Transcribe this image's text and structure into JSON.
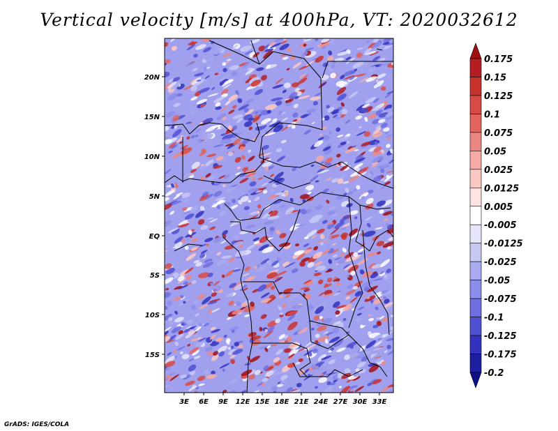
{
  "title": "Vertical velocity [m/s] at 400hPa, VT: 2020032612",
  "credit": "GrADS: IGES/COLA",
  "lat_labels": [
    "20N",
    "15N",
    "10N",
    "5N",
    "EQ",
    "5S",
    "10S",
    "15S"
  ],
  "lon_labels": [
    "3E",
    "6E",
    "9E",
    "12E",
    "15E",
    "18E",
    "21E",
    "24E",
    "27E",
    "30E",
    "33E"
  ],
  "colorbar": {
    "labels": [
      "0.175",
      "0.15",
      "0.125",
      "0.1",
      "0.075",
      "0.05",
      "0.025",
      "0.0125",
      "0.005",
      "-0.005",
      "-0.0125",
      "-0.025",
      "-0.05",
      "-0.075",
      "-0.1",
      "-0.125",
      "-0.175",
      "-0.2"
    ],
    "colors": [
      "#a00f14",
      "#b41e23",
      "#c8322d",
      "#d74b46",
      "#e1645f",
      "#eb8782",
      "#f5aaa5",
      "#fac8c3",
      "#fde4e1",
      "#ffffff",
      "#e6e6fa",
      "#c8c8f5",
      "#aaaaf0",
      "#8c8ceb",
      "#6e6ee1",
      "#5050d2",
      "#3232be",
      "#1e1ea0",
      "#0f0f87"
    ]
  }
}
